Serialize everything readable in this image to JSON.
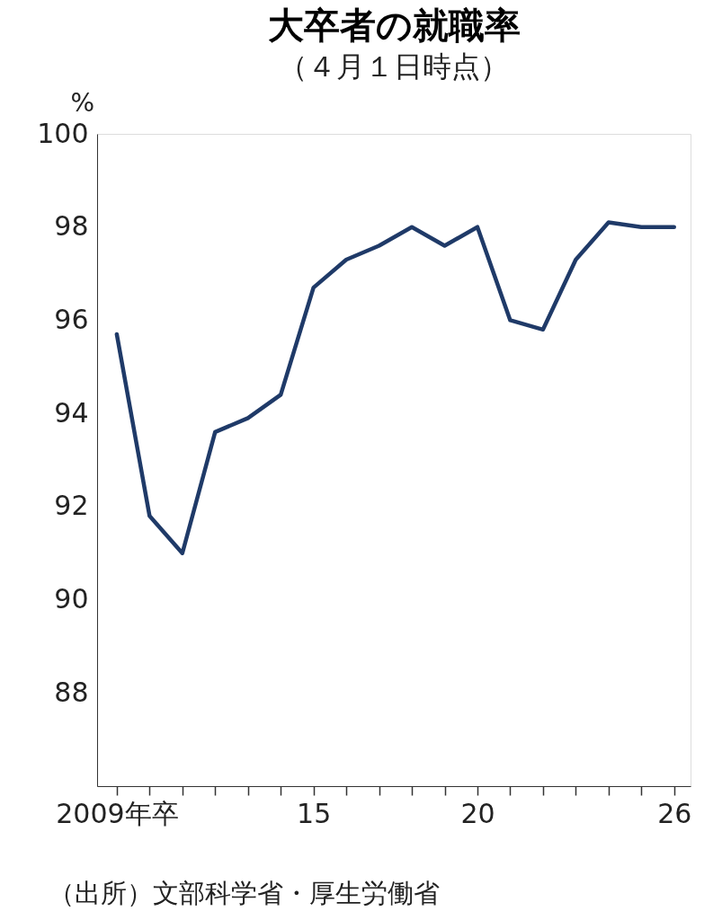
{
  "chart_data": {
    "type": "line",
    "title": "大卒者の就職率",
    "subtitle": "（４月１日時点）",
    "ylabel": "%",
    "x": [
      2009,
      2010,
      2011,
      2012,
      2013,
      2014,
      2015,
      2016,
      2017,
      2018,
      2019,
      2020,
      2021,
      2022,
      2023,
      2024,
      2025,
      2026
    ],
    "series": [
      {
        "color": "#1f3a68",
        "values": [
          95.7,
          91.8,
          91.0,
          93.6,
          93.9,
          94.4,
          96.7,
          97.3,
          97.6,
          98.0,
          97.6,
          98.0,
          96.0,
          95.8,
          97.3,
          98.1,
          98.0,
          98.0
        ]
      }
    ],
    "xlim": [
      2008.4,
      2026.5
    ],
    "xticks": [
      {
        "value": 2009,
        "label": "2009年卒"
      },
      {
        "value": 2010,
        "label": null
      },
      {
        "value": 2011,
        "label": null
      },
      {
        "value": 2012,
        "label": null
      },
      {
        "value": 2013,
        "label": null
      },
      {
        "value": 2014,
        "label": null
      },
      {
        "value": 2015,
        "label": "15"
      },
      {
        "value": 2016,
        "label": null
      },
      {
        "value": 2017,
        "label": null
      },
      {
        "value": 2018,
        "label": null
      },
      {
        "value": 2019,
        "label": null
      },
      {
        "value": 2020,
        "label": "20"
      },
      {
        "value": 2021,
        "label": null
      },
      {
        "value": 2022,
        "label": null
      },
      {
        "value": 2023,
        "label": null
      },
      {
        "value": 2024,
        "label": null
      },
      {
        "value": 2025,
        "label": null
      },
      {
        "value": 2026,
        "label": "26"
      }
    ],
    "ylim": [
      86,
      100
    ],
    "yticks": [
      88,
      90,
      92,
      94,
      96,
      98,
      100
    ],
    "grid": false,
    "marker": "none",
    "line_style": "solid",
    "annotations": [
      "（出所）文部科学省・厚生労働省"
    ]
  }
}
